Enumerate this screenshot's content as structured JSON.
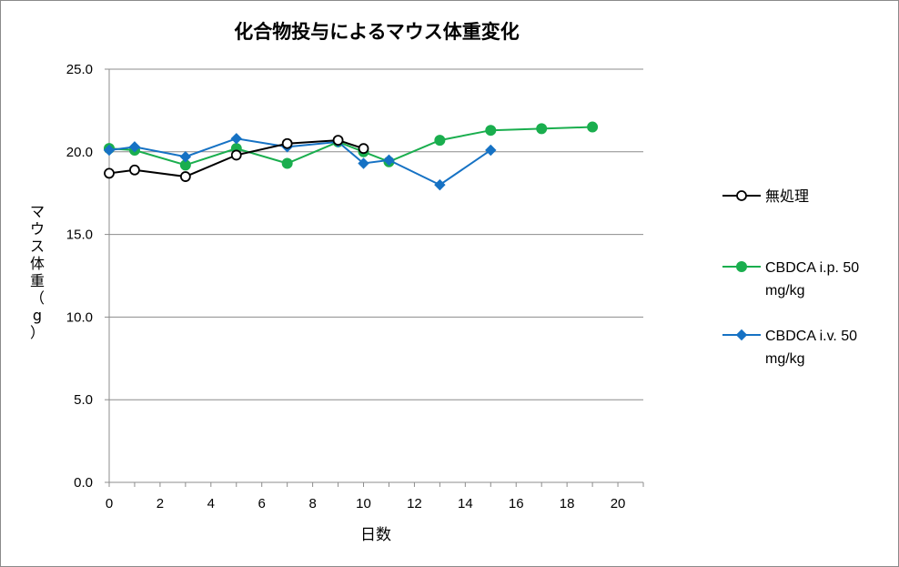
{
  "chart_data": {
    "type": "line",
    "title": "化合物投与によるマウス体重変化",
    "xlabel": "日数",
    "ylabel": "マウス体重（g）",
    "xlim": [
      0,
      21
    ],
    "ylim": [
      0,
      25
    ],
    "x_ticks": [
      "0",
      "2",
      "4",
      "6",
      "8",
      "10",
      "12",
      "14",
      "16",
      "18",
      "20"
    ],
    "y_ticks": [
      "0.0",
      "5.0",
      "10.0",
      "15.0",
      "20.0",
      "25.0"
    ],
    "grid": "horizontal",
    "legend_position": "right",
    "series": [
      {
        "name": "無処理",
        "color": "#000000",
        "marker": "open-circle",
        "x": [
          0,
          1,
          3,
          5,
          7,
          9,
          10
        ],
        "y": [
          18.7,
          18.9,
          18.5,
          19.8,
          20.5,
          20.7,
          20.2
        ]
      },
      {
        "name": "CBDCA i.p. 50 mg/kg",
        "legend_lines": [
          "CBDCA i.p. 50",
          "mg/kg"
        ],
        "color": "#1AAE4E",
        "marker": "circle",
        "x": [
          0,
          1,
          3,
          5,
          7,
          9,
          10,
          11,
          13,
          15,
          17,
          19
        ],
        "y": [
          20.2,
          20.1,
          19.2,
          20.2,
          19.3,
          20.6,
          20.0,
          19.4,
          20.7,
          21.3,
          21.4,
          21.5
        ]
      },
      {
        "name": "CBDCA i.v. 50 mg/kg",
        "legend_lines": [
          "CBDCA i.v. 50",
          "mg/kg"
        ],
        "color": "#1672C4",
        "marker": "diamond",
        "x": [
          0,
          1,
          3,
          5,
          7,
          9,
          10,
          11,
          13,
          15
        ],
        "y": [
          20.1,
          20.3,
          19.7,
          20.8,
          20.3,
          20.6,
          19.3,
          19.5,
          18.0,
          20.1
        ]
      }
    ]
  }
}
